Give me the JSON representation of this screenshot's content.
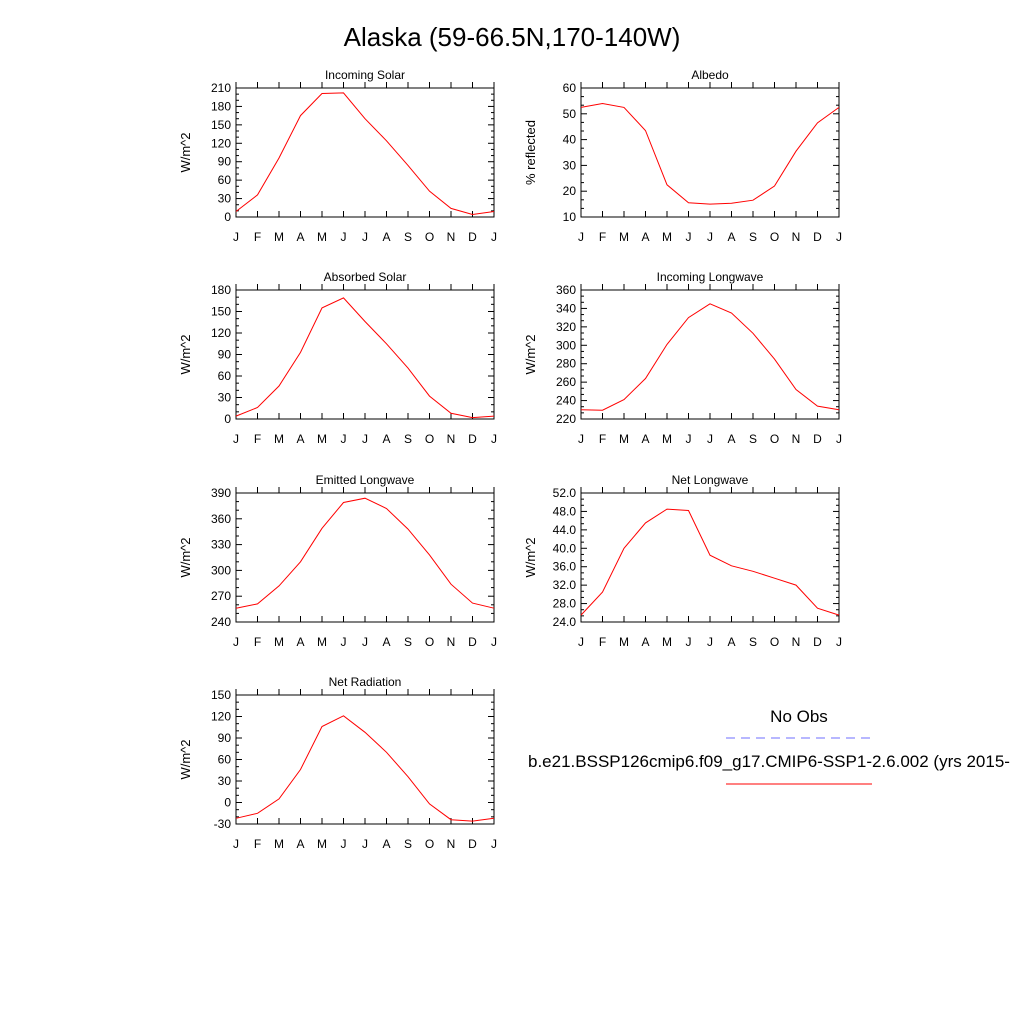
{
  "page": {
    "title": "Alaska (59-66.5N,170-140W)"
  },
  "months": [
    "J",
    "F",
    "M",
    "A",
    "M",
    "J",
    "J",
    "A",
    "S",
    "O",
    "N",
    "D",
    "J"
  ],
  "legend": {
    "obs_label": "No Obs",
    "model_label": "b.e21.BSSP126cmip6.f09_g17.CMIP6-SSP1-2.6.002 (yrs 2015-",
    "obs_color": "#6f6fff",
    "model_color": "#ff0000"
  },
  "chart_data": [
    {
      "type": "line",
      "title": "Incoming Solar",
      "ylabel": "W/m^2",
      "ylim": [
        0,
        210
      ],
      "yticks": [
        0,
        30,
        60,
        90,
        120,
        150,
        180,
        210
      ],
      "yticklabels": [
        "0",
        "30",
        "60",
        "90",
        "120",
        "150",
        "180",
        "210"
      ],
      "categories": [
        "J",
        "F",
        "M",
        "A",
        "M",
        "J",
        "J",
        "A",
        "S",
        "O",
        "N",
        "D",
        "J"
      ],
      "values": [
        9,
        36,
        96,
        165,
        201,
        202,
        160,
        124,
        84,
        42,
        14,
        4,
        9
      ]
    },
    {
      "type": "line",
      "title": "Albedo",
      "ylabel": "% reflected",
      "ylim": [
        10,
        60
      ],
      "yticks": [
        10,
        20,
        30,
        40,
        50,
        60
      ],
      "yticklabels": [
        "10",
        "20",
        "30",
        "40",
        "50",
        "60"
      ],
      "categories": [
        "J",
        "F",
        "M",
        "A",
        "M",
        "J",
        "J",
        "A",
        "S",
        "O",
        "N",
        "D",
        "J"
      ],
      "values": [
        52.5,
        54,
        52.5,
        43.5,
        22.5,
        15.5,
        15,
        15.3,
        16.5,
        22,
        35.5,
        46.5,
        52.5
      ]
    },
    {
      "type": "line",
      "title": "Absorbed Solar",
      "ylabel": "W/m^2",
      "ylim": [
        0,
        180
      ],
      "yticks": [
        0,
        30,
        60,
        90,
        120,
        150,
        180
      ],
      "yticklabels": [
        "0",
        "30",
        "60",
        "90",
        "120",
        "150",
        "180"
      ],
      "categories": [
        "J",
        "F",
        "M",
        "A",
        "M",
        "J",
        "J",
        "A",
        "S",
        "O",
        "N",
        "D",
        "J"
      ],
      "values": [
        4,
        16,
        46,
        93,
        155,
        169,
        136,
        105,
        71,
        32,
        8,
        2,
        4
      ]
    },
    {
      "type": "line",
      "title": "Incoming Longwave",
      "ylabel": "W/m^2",
      "ylim": [
        220,
        360
      ],
      "yticks": [
        220,
        240,
        260,
        280,
        300,
        320,
        340,
        360
      ],
      "yticklabels": [
        "220",
        "240",
        "260",
        "280",
        "300",
        "320",
        "340",
        "360"
      ],
      "categories": [
        "J",
        "F",
        "M",
        "A",
        "M",
        "J",
        "J",
        "A",
        "S",
        "O",
        "N",
        "D",
        "J"
      ],
      "values": [
        230,
        229.5,
        241,
        264,
        301,
        330,
        345,
        335,
        313,
        285,
        252,
        234,
        230
      ]
    },
    {
      "type": "line",
      "title": "Emitted Longwave",
      "ylabel": "W/m^2",
      "ylim": [
        240,
        390
      ],
      "yticks": [
        240,
        270,
        300,
        330,
        360,
        390
      ],
      "yticklabels": [
        "240",
        "270",
        "300",
        "330",
        "360",
        "390"
      ],
      "categories": [
        "J",
        "F",
        "M",
        "A",
        "M",
        "J",
        "J",
        "A",
        "S",
        "O",
        "N",
        "D",
        "J"
      ],
      "values": [
        256,
        261,
        282,
        310,
        349,
        379,
        384,
        372,
        348,
        318,
        284,
        262,
        256
      ]
    },
    {
      "type": "line",
      "title": "Net Longwave",
      "ylabel": "W/m^2",
      "ylim": [
        24,
        52
      ],
      "yticks": [
        24,
        28,
        32,
        36,
        40,
        44,
        48,
        52
      ],
      "yticklabels": [
        "24.0",
        "28.0",
        "32.0",
        "36.0",
        "40.0",
        "44.0",
        "48.0",
        "52.0"
      ],
      "categories": [
        "J",
        "F",
        "M",
        "A",
        "M",
        "J",
        "J",
        "A",
        "S",
        "O",
        "N",
        "D",
        "J"
      ],
      "values": [
        25.5,
        30.5,
        40,
        45.5,
        48.5,
        48.2,
        38.5,
        36.2,
        35,
        33.5,
        32,
        27,
        25.5
      ]
    },
    {
      "type": "line",
      "title": "Net Radiation",
      "ylabel": "W/m^2",
      "ylim": [
        -30,
        150
      ],
      "yticks": [
        -30,
        0,
        30,
        60,
        90,
        120,
        150
      ],
      "yticklabels": [
        "-30",
        "0",
        "30",
        "60",
        "90",
        "120",
        "150"
      ],
      "categories": [
        "J",
        "F",
        "M",
        "A",
        "M",
        "J",
        "J",
        "A",
        "S",
        "O",
        "N",
        "D",
        "J"
      ],
      "values": [
        -22,
        -15,
        5,
        46,
        106,
        121,
        98,
        70,
        36,
        -2,
        -24,
        -26,
        -22
      ]
    }
  ]
}
